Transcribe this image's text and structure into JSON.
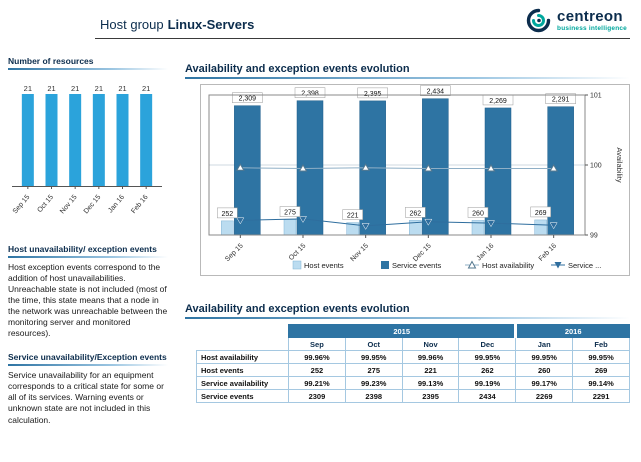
{
  "header": {
    "title_prefix": "Host group",
    "title_name": "Linux-Servers",
    "logo": {
      "brand": "centreon",
      "tagline": "business intelligence"
    }
  },
  "colors": {
    "accent_blue": "#2E74A3",
    "resources_bar": "#2BA3DB",
    "host_events_bar": "#BBDCF0",
    "service_events_bar": "#2E74A3",
    "host_availability_line": "#8FAFC6",
    "service_availability_line": "#2F6E9E",
    "title_navy": "#0C2D4D",
    "tagline_teal": "#00A79D"
  },
  "sidebar": {
    "resources_title": "Number of resources",
    "host_section": {
      "title": "Host unavailability/ exception events",
      "body": "Host exception events correspond to the addition of host unavailabilities. Unreachable state is not included (most of the time, this state means that a node in the network was unreachable between the monitoring server and monitored resources)."
    },
    "service_section": {
      "title": "Service unavailability/Exception events",
      "body": "Service unavailability for an equipment corresponds to a critical state for some or all of its services. Warning events or unknown state are not included in this calculation."
    }
  },
  "main": {
    "chart_title": "Availability and exception events evolution",
    "table_title": "Availability and exception events evolution"
  },
  "chart_data": [
    {
      "name": "number_of_resources",
      "type": "bar",
      "title": "Number of resources",
      "categories": [
        "Sep 15",
        "Oct 15",
        "Nov 15",
        "Dec 15",
        "Jan 16",
        "Feb 16"
      ],
      "values": [
        21,
        21,
        21,
        21,
        21,
        21
      ]
    },
    {
      "name": "availability_and_exception_events",
      "type": "combo",
      "title": "Availability and exception events evolution",
      "categories": [
        "Sep 15",
        "Oct 15",
        "Nov 15",
        "Dec 15",
        "Jan 16",
        "Feb 16"
      ],
      "series": [
        {
          "name": "Host events",
          "type": "bar",
          "axis": "left",
          "values": [
            252,
            275,
            221,
            262,
            260,
            269
          ]
        },
        {
          "name": "Service events",
          "type": "bar",
          "axis": "left",
          "values": [
            2309,
            2398,
            2395,
            2434,
            2269,
            2291
          ]
        },
        {
          "name": "Host availability",
          "type": "line",
          "axis": "right",
          "values": [
            99.96,
            99.95,
            99.96,
            99.95,
            99.95,
            99.95
          ]
        },
        {
          "name": "Service availability",
          "type": "line",
          "axis": "right",
          "values": [
            99.21,
            99.23,
            99.13,
            99.19,
            99.17,
            99.14
          ]
        }
      ],
      "legend_labels": [
        "Host events",
        "Service events",
        "Host availability",
        "Service ..."
      ],
      "left_axis": {
        "min": 0,
        "max": 2500,
        "visible": false
      },
      "right_axis": {
        "label": "Availability",
        "min": 99,
        "max": 101,
        "ticks": [
          99,
          100,
          101
        ]
      }
    }
  ],
  "table": {
    "year_groups": [
      {
        "label": "2015",
        "span": 4
      },
      {
        "label": "2016",
        "span": 2
      }
    ],
    "months": [
      "Sep",
      "Oct",
      "Nov",
      "Dec",
      "Jan",
      "Feb"
    ],
    "rows": [
      {
        "label": "Host availability",
        "values": [
          "99.96%",
          "99.95%",
          "99.96%",
          "99.95%",
          "99.95%",
          "99.95%"
        ]
      },
      {
        "label": "Host events",
        "values": [
          "252",
          "275",
          "221",
          "262",
          "260",
          "269"
        ]
      },
      {
        "label": "Service availability",
        "values": [
          "99.21%",
          "99.23%",
          "99.13%",
          "99.19%",
          "99.17%",
          "99.14%"
        ]
      },
      {
        "label": "Service events",
        "values": [
          "2309",
          "2398",
          "2395",
          "2434",
          "2269",
          "2291"
        ]
      }
    ]
  }
}
